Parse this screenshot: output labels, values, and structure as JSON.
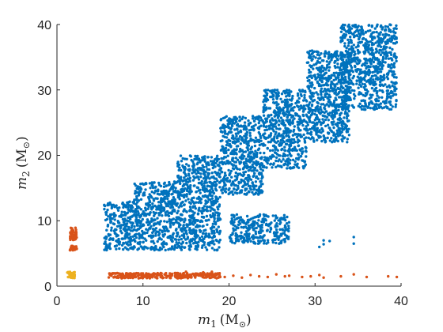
{
  "chart_data": {
    "type": "scatter",
    "title": "",
    "xlabel": {
      "var": "m",
      "sub": "1",
      "unit": "(M",
      "sun": "⊙",
      "close": ")"
    },
    "ylabel": {
      "var": "m",
      "sub": "2",
      "unit": "(M",
      "sun": "⊙",
      "close": ")"
    },
    "xlim": [
      0,
      40
    ],
    "ylim": [
      0,
      40
    ],
    "xticks": [
      "0",
      "10",
      "20",
      "30",
      "40"
    ],
    "yticks": [
      "0",
      "10",
      "20",
      "30",
      "40"
    ],
    "grid": false,
    "legend": "none",
    "series": [
      {
        "color": "#0072BD",
        "regions": [
          {
            "x": [
              5.5,
              9
            ],
            "y": [
              5.5,
              13
            ]
          },
          {
            "x": [
              9,
              14
            ],
            "y": [
              5.5,
              16
            ]
          },
          {
            "x": [
              14,
              19
            ],
            "y": [
              5.5,
              20
            ]
          },
          {
            "x": [
              19,
              24
            ],
            "y": [
              14,
              26
            ]
          },
          {
            "x": [
              24,
              29
            ],
            "y": [
              18,
              30
            ]
          },
          {
            "x": [
              29,
              34
            ],
            "y": [
              22,
              36
            ]
          },
          {
            "x": [
              33,
              39.5
            ],
            "y": [
              27,
              40
            ]
          },
          {
            "x": [
              20,
              27
            ],
            "y": [
              6.5,
              11
            ]
          }
        ],
        "points": [
          [
            31,
            7
          ],
          [
            34.5,
            7.5
          ],
          [
            34.5,
            6.5
          ],
          [
            30.5,
            6
          ],
          [
            31.7,
            6.9
          ],
          [
            31,
            6.4
          ]
        ]
      },
      {
        "color": "#D95319",
        "regions": [
          {
            "x": [
              1.5,
              2.3
            ],
            "y": [
              5.5,
              6.2
            ]
          },
          {
            "x": [
              1.5,
              2.3
            ],
            "y": [
              7,
              9
            ]
          },
          {
            "x": [
              6,
              19
            ],
            "y": [
              1.2,
              2.0
            ]
          }
        ],
        "points": [
          [
            19.5,
            1.4
          ],
          [
            20.5,
            1.6
          ],
          [
            21.5,
            1.3
          ],
          [
            22.5,
            1.7
          ],
          [
            23.5,
            1.5
          ],
          [
            24.5,
            1.4
          ],
          [
            25.5,
            1.8
          ],
          [
            26.5,
            1.5
          ],
          [
            27,
            1.6
          ],
          [
            28.5,
            1.4
          ],
          [
            29.5,
            1.5
          ],
          [
            30.5,
            1.7
          ],
          [
            31,
            1.3
          ],
          [
            33,
            1.5
          ],
          [
            34.5,
            1.8
          ],
          [
            36,
            1.4
          ],
          [
            38.5,
            1.5
          ],
          [
            39.5,
            1.4
          ],
          [
            18,
            2.2
          ],
          [
            17,
            2.1
          ],
          [
            15,
            2.2
          ]
        ]
      },
      {
        "color": "#EDB120",
        "regions": [
          {
            "x": [
              1.2,
              2.1
            ],
            "y": [
              1.2,
              2.2
            ]
          }
        ],
        "points": []
      }
    ]
  }
}
